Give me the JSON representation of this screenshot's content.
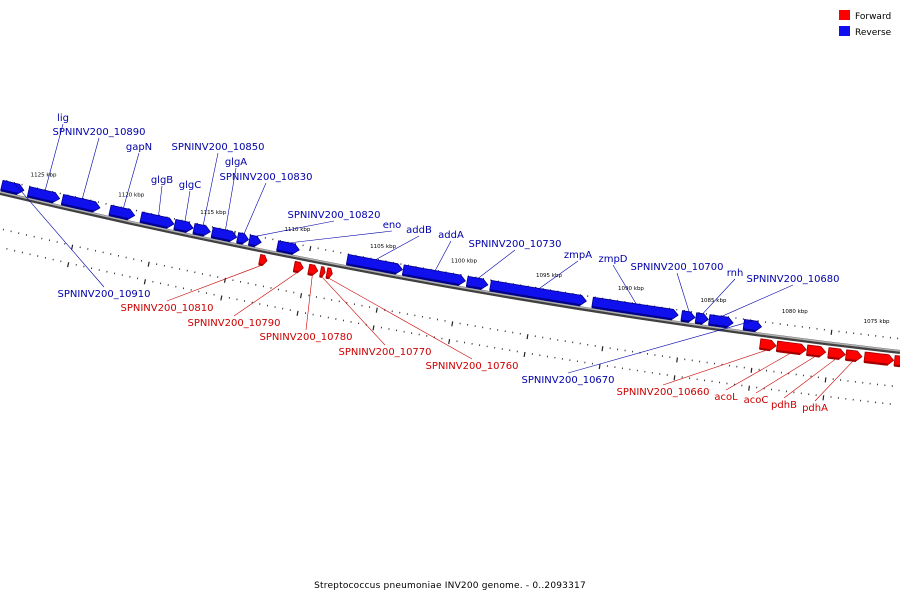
{
  "caption": "Streptococcus pneumoniae INV200 genome. - 0..2093317",
  "colors": {
    "forward": "#ff0000",
    "forward_dark": "#a00000",
    "reverse": "#1010ee",
    "reverse_dark": "#00008a",
    "forward_label": "#cc0000",
    "reverse_label": "#0000aa",
    "backbone": "#808080"
  },
  "legend": [
    {
      "label": "Forward",
      "strand": "forward"
    },
    {
      "label": "Reverse",
      "strand": "reverse"
    }
  ],
  "scale_labels": [
    {
      "text": "1125 kbp",
      "t": 0.041
    },
    {
      "text": "1120 kbp",
      "t": 0.137
    },
    {
      "text": "1115 kbp",
      "t": 0.227
    },
    {
      "text": "1110 kbp",
      "t": 0.32
    },
    {
      "text": "1105 kbp",
      "t": 0.415
    },
    {
      "text": "1100 kbp",
      "t": 0.505
    },
    {
      "text": "1095 kbp",
      "t": 0.6
    },
    {
      "text": "1090 kbp",
      "t": 0.692
    },
    {
      "text": "1085 kbp",
      "t": 0.785
    },
    {
      "text": "1080 kbp",
      "t": 0.877
    },
    {
      "text": "1075 kbp",
      "t": 0.97
    }
  ],
  "genes": [
    {
      "strand": "reverse",
      "t0": 0.0,
      "t1": 0.024,
      "label": "SPNINV200_10910"
    },
    {
      "strand": "reverse",
      "t0": 0.029,
      "t1": 0.063,
      "label": "lig"
    },
    {
      "strand": "reverse",
      "t0": 0.066,
      "t1": 0.107,
      "label": "SPNINV200_10890"
    },
    {
      "strand": "reverse",
      "t0": 0.118,
      "t1": 0.145,
      "label": "gapN"
    },
    {
      "strand": "reverse",
      "t0": 0.152,
      "t1": 0.188,
      "label": "glgB"
    },
    {
      "strand": "reverse",
      "t0": 0.189,
      "t1": 0.209,
      "label": "glgC"
    },
    {
      "strand": "reverse",
      "t0": 0.21,
      "t1": 0.228,
      "label": "SPNINV200_10850"
    },
    {
      "strand": "reverse",
      "t0": 0.23,
      "t1": 0.257,
      "label": "glgA"
    },
    {
      "strand": "reverse",
      "t0": 0.258,
      "t1": 0.27,
      "label": "SPNINV200_10830"
    },
    {
      "strand": "reverse",
      "t0": 0.271,
      "t1": 0.284,
      "label": "SPNINV200_10820"
    },
    {
      "strand": "reverse",
      "t0": 0.302,
      "t1": 0.326,
      "label": "eno"
    },
    {
      "strand": "reverse",
      "t0": 0.379,
      "t1": 0.44,
      "label": "addB"
    },
    {
      "strand": "reverse",
      "t0": 0.441,
      "t1": 0.51,
      "label": "addA"
    },
    {
      "strand": "reverse",
      "t0": 0.512,
      "t1": 0.535,
      "label": "SPNINV200_10730"
    },
    {
      "strand": "reverse",
      "t0": 0.538,
      "t1": 0.645,
      "label": "zmpA"
    },
    {
      "strand": "reverse",
      "t0": 0.652,
      "t1": 0.748,
      "label": "zmpD"
    },
    {
      "strand": "reverse",
      "t0": 0.752,
      "t1": 0.767,
      "label": "SPNINV200_10700"
    },
    {
      "strand": "reverse",
      "t0": 0.768,
      "t1": 0.782,
      "label": "rnh"
    },
    {
      "strand": "reverse",
      "t0": 0.783,
      "t1": 0.81,
      "label": "SPNINV200_10680"
    },
    {
      "strand": "reverse",
      "t0": 0.822,
      "t1": 0.842,
      "label": "SPNINV200_10670"
    },
    {
      "strand": "forward",
      "t0": 0.286,
      "t1": 0.294,
      "label": "SPNINV200_10810"
    },
    {
      "strand": "forward",
      "t0": 0.324,
      "t1": 0.334,
      "label": "SPNINV200_10790"
    },
    {
      "strand": "forward",
      "t0": 0.34,
      "t1": 0.35,
      "label": "SPNINV200_10780"
    },
    {
      "strand": "forward",
      "t0": 0.353,
      "t1": 0.358,
      "label": "SPNINV200_10770"
    },
    {
      "strand": "forward",
      "t0": 0.36,
      "t1": 0.366,
      "label": "SPNINV200_10760"
    },
    {
      "strand": "forward",
      "t0": 0.843,
      "t1": 0.861,
      "label": "SPNINV200_10660"
    },
    {
      "strand": "forward",
      "t0": 0.862,
      "t1": 0.895,
      "label": "acoL"
    },
    {
      "strand": "forward",
      "t0": 0.896,
      "t1": 0.917,
      "label": "acoC"
    },
    {
      "strand": "forward",
      "t0": 0.92,
      "t1": 0.939,
      "label": "pdhB"
    },
    {
      "strand": "forward",
      "t0": 0.94,
      "t1": 0.958,
      "label": "pdhA"
    },
    {
      "strand": "forward",
      "t0": 0.961,
      "t1": 0.994,
      "label": ""
    },
    {
      "strand": "forward",
      "t0": 0.995,
      "t1": 1.02,
      "label": ""
    }
  ]
}
